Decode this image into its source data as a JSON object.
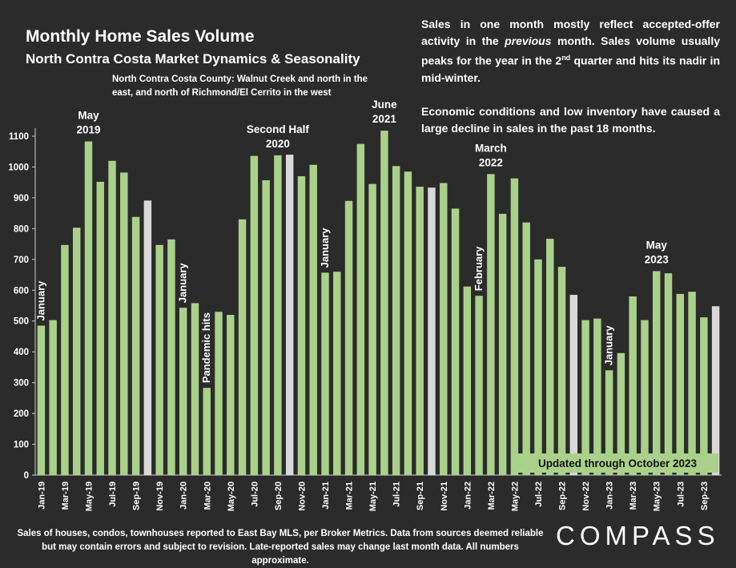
{
  "header": {
    "title": "Monthly Home Sales Volume",
    "subtitle": "North Contra Costa Market Dynamics & Seasonality",
    "scope": "North Contra Costa County: Walnut Creek and north in the east, and north of Richmond/El Cerrito in the west"
  },
  "commentary": {
    "p1_a": "Sales in one month mostly reflect accepted-offer activity in the ",
    "p1_em": "previous",
    "p1_b": " month. Sales volume usually peaks for the year in the 2",
    "p1_sup": "nd",
    "p1_c": " quarter and hits its nadir in mid-winter.",
    "p2": "Economic conditions and low inventory have caused a large decline in sales in the past 18 months."
  },
  "footnote": "Sales of houses, condos, townhouses reported to East Bay MLS, per Broker Metrics. Data from sources deemed reliable but may contain errors and subject to revision. Late-reported sales may change last month data. All numbers approximate.",
  "logo": "COMPASS",
  "colors": {
    "bar": "#aad18a",
    "bar_highlight": "#d9d9d9",
    "background": "#2b2b2b",
    "text": "#ffffff",
    "banner": "#aad18a"
  },
  "chart_data": {
    "type": "bar",
    "ylim": [
      0,
      1100
    ],
    "yticks": [
      "0",
      "100",
      "200",
      "300",
      "400",
      "500",
      "600",
      "700",
      "800",
      "900",
      "1000",
      "1100"
    ],
    "x_labels": [
      "Jan-19",
      "Mar-19",
      "May-19",
      "Jul-19",
      "Sep-19",
      "Nov-19",
      "Jan-20",
      "Mar-20",
      "May-20",
      "Jul-20",
      "Sep-20",
      "Nov-20",
      "Jan-21",
      "Mar-21",
      "May-21",
      "Jul-21",
      "Sep-21",
      "Nov-21",
      "Jan-22",
      "Mar-22",
      "May-22",
      "Jul-22",
      "Sep-22",
      "Nov-22",
      "Jan-23",
      "Mar-23",
      "May-23",
      "Jul-23",
      "Sep-23"
    ],
    "values": [
      485,
      503,
      747,
      803,
      1083,
      952,
      1020,
      982,
      838,
      891,
      747,
      765,
      543,
      558,
      283,
      530,
      520,
      830,
      1036,
      957,
      1038,
      1040,
      970,
      1007,
      657,
      660,
      890,
      1075,
      945,
      1118,
      1003,
      985,
      936,
      933,
      948,
      865,
      612,
      582,
      977,
      848,
      963,
      820,
      700,
      767,
      676,
      585,
      503,
      508,
      340,
      396,
      580,
      503,
      662,
      655,
      588,
      595,
      512,
      548
    ],
    "highlight_indices": [
      9,
      21,
      33,
      45,
      57
    ],
    "annotations": [
      {
        "text": "January",
        "index": 0,
        "vertical": true
      },
      {
        "text": "May 2019",
        "index": 4,
        "vertical": false
      },
      {
        "text": "January",
        "index": 12,
        "vertical": true
      },
      {
        "text": "Pandemic hits",
        "index": 14,
        "vertical": true
      },
      {
        "text": "Second Half 2020",
        "index": 20,
        "vertical": false
      },
      {
        "text": "January",
        "index": 24,
        "vertical": true
      },
      {
        "text": "June 2021",
        "index": 29,
        "vertical": false
      },
      {
        "text": "February",
        "index": 37,
        "vertical": true
      },
      {
        "text": "March 2022",
        "index": 38,
        "vertical": false
      },
      {
        "text": "January",
        "index": 48,
        "vertical": true
      },
      {
        "text": "May 2023",
        "index": 52,
        "vertical": false
      }
    ],
    "banner": "Updated through October 2023"
  }
}
